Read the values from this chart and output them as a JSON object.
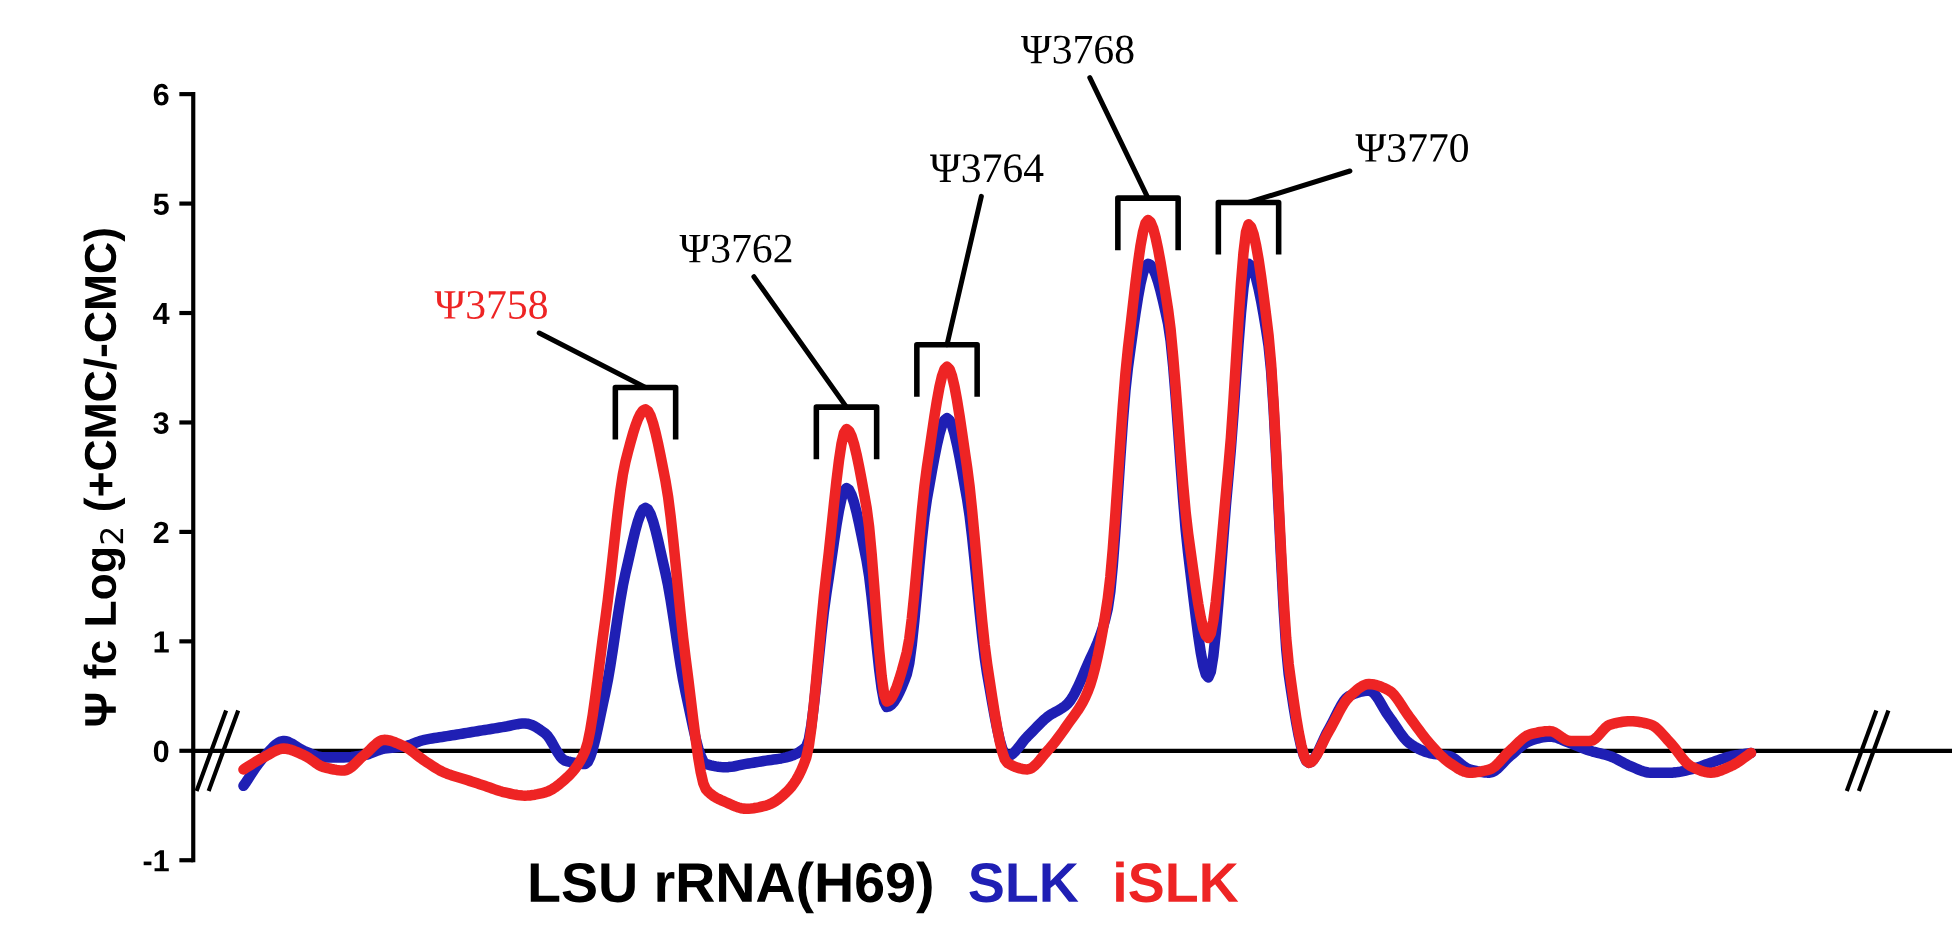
{
  "chart_data": {
    "type": "line",
    "ylabel": "Ψ fc Log$_{2}$ (+CMC/-CMC)",
    "xlabel": "LSU rRNA(H69)",
    "categories": [
      null,
      null,
      null,
      null,
      null,
      null,
      null,
      null,
      null,
      null,
      null,
      null,
      null,
      null,
      null,
      null,
      null,
      null,
      null,
      null,
      null,
      null,
      null,
      null,
      null,
      null,
      null,
      null,
      null,
      null,
      null,
      null,
      null,
      null,
      null,
      null,
      null,
      null,
      null,
      null,
      null,
      null,
      null,
      null,
      null,
      null,
      null,
      null,
      null,
      null,
      null,
      null,
      null,
      null,
      null,
      null,
      null,
      null,
      null,
      null,
      null,
      null,
      null,
      null,
      null,
      null,
      null,
      null,
      null,
      null,
      null,
      null,
      null,
      null,
      null,
      null
    ],
    "series": [
      {
        "name": "SLK",
        "color": "#1f1fb4",
        "values": [
          -0.32,
          -0.06,
          0.09,
          0,
          -0.06,
          -0.06,
          -0.04,
          0.02,
          0.04,
          0.1,
          0.13,
          0.16,
          0.19,
          0.22,
          0.25,
          0.16,
          -0.09,
          -0.12,
          0.53,
          1.62,
          2.22,
          1.62,
          0.53,
          -0.12,
          -0.15,
          -0.12,
          -0.09,
          -0.06,
          0.04,
          1.44,
          2.4,
          1.74,
          0.4,
          0.7,
          2.3,
          3.04,
          2.3,
          0.7,
          -0.05,
          0.13,
          0.31,
          0.43,
          0.79,
          1.3,
          3.5,
          4.45,
          3.9,
          1.8,
          0.67,
          2.5,
          4.45,
          3.7,
          0.7,
          -0.11,
          0.2,
          0.5,
          0.55,
          0.31,
          0.07,
          -0.02,
          -0.05,
          -0.17,
          -0.2,
          -0.05,
          0.09,
          0.13,
          0.07,
          0,
          -0.05,
          -0.14,
          -0.2,
          -0.2,
          -0.17,
          -0.11,
          -0.05,
          -0.02
        ]
      },
      {
        "name": "iSLK",
        "color": "#ee2424",
        "values": [
          -0.17,
          -0.06,
          0.02,
          -0.04,
          -0.15,
          -0.18,
          -0.04,
          0.1,
          0.04,
          -0.09,
          -0.2,
          -0.26,
          -0.32,
          -0.38,
          -0.41,
          -0.38,
          -0.26,
          0,
          1.2,
          2.64,
          3.12,
          2.46,
          0.84,
          -0.35,
          -0.47,
          -0.53,
          -0.5,
          -0.38,
          -0.06,
          1.62,
          2.94,
          2.22,
          0.45,
          0.9,
          2.59,
          3.51,
          2.59,
          0.79,
          -0.11,
          -0.17,
          0,
          0.24,
          0.54,
          1.39,
          3.67,
          4.85,
          4.03,
          1.98,
          1.03,
          2.59,
          4.81,
          3.79,
          0.79,
          -0.11,
          0.18,
          0.49,
          0.61,
          0.55,
          0.31,
          0.07,
          -0.11,
          -0.2,
          -0.17,
          0,
          0.15,
          0.18,
          0.09,
          0.09,
          0.24,
          0.27,
          0.24,
          0.07,
          -0.14,
          -0.2,
          -0.14,
          -0.02
        ]
      }
    ],
    "ylim": [
      -1,
      6
    ],
    "yticks": [
      -1,
      0,
      1,
      2,
      3,
      4,
      5,
      6
    ],
    "annotations": [
      "Ψ3758",
      "Ψ3762",
      "Ψ3764",
      "Ψ3768",
      "Ψ3770"
    ],
    "marker": "none",
    "line_style": "solid",
    "tick_labels": "y"
  }
}
